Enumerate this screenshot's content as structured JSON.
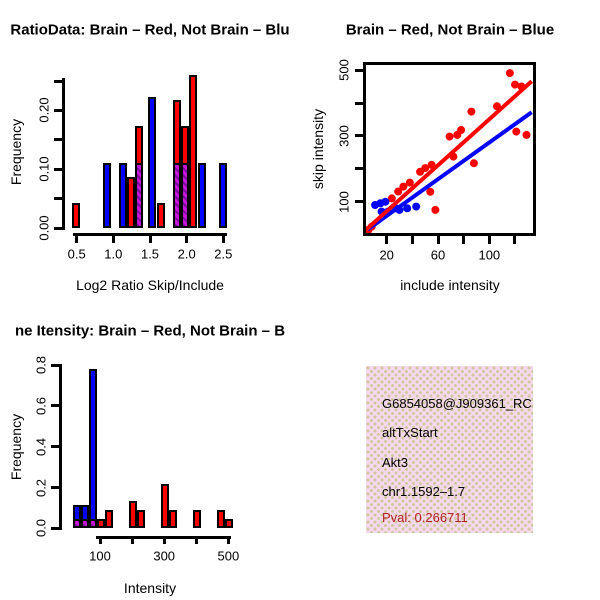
{
  "colors": {
    "red": "#FF0000",
    "blue": "#0000FF",
    "overlap_fill": "#C716DC",
    "overlap_stripe": "#7E0B9B",
    "axis": "#000000",
    "pval_red": "#B22222",
    "info_bg": "#F6D8EC",
    "info_dots": "#CFC89E"
  },
  "chart_data": [
    {
      "type": "bar",
      "title": "RatioData: Brain – Red, Not Brain – Blu",
      "xlabel": "Log2 Ratio Skip/Include",
      "ylabel": "Frequency",
      "xlim": [
        0.35,
        2.6
      ],
      "ylim": [
        0,
        0.26
      ],
      "grid": false,
      "bin_width": 0.105,
      "xticks": [
        {
          "v": 0.5,
          "label": "0.5"
        },
        {
          "v": 1.0,
          "label": "1.0"
        },
        {
          "v": 1.5,
          "label": "1.5"
        },
        {
          "v": 2.0,
          "label": "2.0"
        },
        {
          "v": 2.5,
          "label": "2.5"
        }
      ],
      "yticks": [
        {
          "v": 0.0,
          "label": "0.00"
        },
        {
          "v": 0.05,
          "label": ""
        },
        {
          "v": 0.1,
          "label": "0.10"
        },
        {
          "v": 0.15,
          "label": ""
        },
        {
          "v": 0.2,
          "label": "0.20"
        },
        {
          "v": 0.25,
          "label": ""
        }
      ],
      "series_note": "red = Brain, blue = Not Brain, purple hatch = overlap",
      "bars": [
        {
          "x": 0.49,
          "red": 0.043,
          "blue": 0
        },
        {
          "x": 0.92,
          "red": 0,
          "blue": 0.111
        },
        {
          "x": 1.135,
          "red": 0,
          "blue": 0.111
        },
        {
          "x": 1.245,
          "red": 0.087,
          "blue": 0
        },
        {
          "x": 1.35,
          "red": 0.174,
          "blue": 0.111
        },
        {
          "x": 1.53,
          "red": 0,
          "blue": 0.222
        },
        {
          "x": 1.65,
          "red": 0.043,
          "blue": 0
        },
        {
          "x": 1.87,
          "red": 0.217,
          "blue": 0.111
        },
        {
          "x": 1.98,
          "red": 0.174,
          "blue": 0.111
        },
        {
          "x": 2.09,
          "red": 0.26,
          "blue": 0
        },
        {
          "x": 2.205,
          "red": 0,
          "blue": 0.111
        },
        {
          "x": 2.49,
          "red": 0,
          "blue": 0.111
        }
      ]
    },
    {
      "type": "scatter",
      "title": "Brain – Red, Not Brain – Blue",
      "xlabel": "include intensity",
      "ylabel": "skip intensity",
      "xlim": [
        4,
        134
      ],
      "ylim": [
        5,
        516
      ],
      "grid": false,
      "xticks": [
        {
          "v": 20,
          "label": "20"
        },
        {
          "v": 40,
          "label": ""
        },
        {
          "v": 60,
          "label": "60"
        },
        {
          "v": 80,
          "label": ""
        },
        {
          "v": 100,
          "label": "100"
        },
        {
          "v": 120,
          "label": ""
        }
      ],
      "yticks": [
        {
          "v": 100,
          "label": "100"
        },
        {
          "v": 200,
          "label": ""
        },
        {
          "v": 300,
          "label": "300"
        },
        {
          "v": 400,
          "label": ""
        },
        {
          "v": 500,
          "label": "500"
        }
      ],
      "series": [
        {
          "name": "Brain",
          "color": "#FF0000",
          "points": [
            [
              5.7,
              14
            ],
            [
              8.3,
              24
            ],
            [
              24,
              110
            ],
            [
              29,
              131
            ],
            [
              33,
              146
            ],
            [
              38,
              158
            ],
            [
              46,
              191
            ],
            [
              50,
              202
            ],
            [
              54,
              130
            ],
            [
              58,
              75
            ],
            [
              55,
              212
            ],
            [
              72,
              237
            ],
            [
              69,
              298
            ],
            [
              75,
              303
            ],
            [
              78,
              318
            ],
            [
              86,
              374
            ],
            [
              88,
              217
            ],
            [
              106,
              390
            ],
            [
              116,
              491
            ],
            [
              120,
              456
            ],
            [
              125,
              450
            ],
            [
              121,
              313
            ],
            [
              129,
              303
            ]
          ],
          "fit_line": [
            [
              4,
              15
            ],
            [
              133,
              466
            ]
          ]
        },
        {
          "name": "Not Brain",
          "color": "#0000FF",
          "points": [
            [
              11,
              90
            ],
            [
              15,
              95
            ],
            [
              19,
              100
            ],
            [
              16,
              70
            ],
            [
              21,
              70
            ],
            [
              27,
              80
            ],
            [
              30,
              75
            ],
            [
              36,
              80
            ],
            [
              43,
              85
            ]
          ],
          "fit_line": [
            [
              5,
              15
            ],
            [
              133,
              372
            ]
          ]
        }
      ]
    },
    {
      "type": "bar",
      "title": "ne Itensity: Brain – Red, Not Brain – B",
      "xlabel": "Intensity",
      "ylabel": "Frequency",
      "xlim": [
        -20,
        520
      ],
      "ylim": [
        0,
        0.8
      ],
      "grid": false,
      "bin_width": 25,
      "xticks": [
        {
          "v": 100,
          "label": "100"
        },
        {
          "v": 200,
          "label": ""
        },
        {
          "v": 300,
          "label": "300"
        },
        {
          "v": 400,
          "label": ""
        },
        {
          "v": 500,
          "label": "500"
        }
      ],
      "yticks": [
        {
          "v": 0.0,
          "label": "0.0"
        },
        {
          "v": 0.2,
          "label": "0.2"
        },
        {
          "v": 0.4,
          "label": "0.4"
        },
        {
          "v": 0.6,
          "label": "0.6"
        },
        {
          "v": 0.8,
          "label": "0.8"
        }
      ],
      "series_note": "red = Brain, blue = Not Brain, purple hatch = overlap",
      "bars": [
        {
          "x0": 15,
          "red": 0.043,
          "blue": 0.111
        },
        {
          "x0": 40,
          "red": 0.043,
          "blue": 0.111
        },
        {
          "x0": 65,
          "red": 0.043,
          "blue": 0.778
        },
        {
          "x0": 90,
          "red": 0.043,
          "blue": 0
        },
        {
          "x0": 115,
          "red": 0.087,
          "blue": 0
        },
        {
          "x0": 190,
          "red": 0.13,
          "blue": 0
        },
        {
          "x0": 215,
          "red": 0.087,
          "blue": 0
        },
        {
          "x0": 290,
          "red": 0.217,
          "blue": 0
        },
        {
          "x0": 315,
          "red": 0.087,
          "blue": 0
        },
        {
          "x0": 390,
          "red": 0.087,
          "blue": 0
        },
        {
          "x0": 465,
          "red": 0.087,
          "blue": 0
        },
        {
          "x0": 490,
          "red": 0.043,
          "blue": 0
        }
      ]
    }
  ],
  "info_box": {
    "lines": [
      {
        "text": "G6854058@J909361_RC",
        "color": "#000000"
      },
      {
        "text": "altTxStart",
        "color": "#000000"
      },
      {
        "text": "Akt3",
        "color": "#000000"
      },
      {
        "text": "chr1.1592–1.7",
        "color": "#000000"
      },
      {
        "text": "Pval: 0.266711",
        "color": "#B22222"
      }
    ]
  }
}
